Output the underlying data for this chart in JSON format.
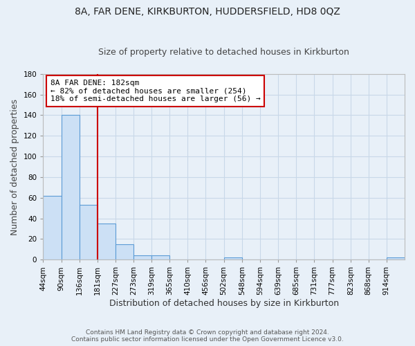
{
  "title1": "8A, FAR DENE, KIRKBURTON, HUDDERSFIELD, HD8 0QZ",
  "title2": "Size of property relative to detached houses in Kirkburton",
  "xlabel": "Distribution of detached houses by size in Kirkburton",
  "ylabel": "Number of detached properties",
  "footnote1": "Contains HM Land Registry data © Crown copyright and database right 2024.",
  "footnote2": "Contains public sector information licensed under the Open Government Licence v3.0.",
  "bin_edges": [
    44,
    90,
    136,
    181,
    227,
    273,
    319,
    365,
    410,
    456,
    502,
    548,
    594,
    639,
    685,
    731,
    777,
    823,
    868,
    914,
    960
  ],
  "bar_heights": [
    62,
    140,
    53,
    35,
    15,
    4,
    4,
    0,
    0,
    0,
    2,
    0,
    0,
    0,
    0,
    0,
    0,
    0,
    0,
    2
  ],
  "bar_color": "#cce0f5",
  "bar_edge_color": "#5b9bd5",
  "grid_color": "#c8d8e8",
  "background_color": "#e8f0f8",
  "vline_x": 182,
  "vline_color": "#cc0000",
  "annotation_line1": "8A FAR DENE: 182sqm",
  "annotation_line2": "← 82% of detached houses are smaller (254)",
  "annotation_line3": "18% of semi-detached houses are larger (56) →",
  "annotation_box_color": "#ffffff",
  "annotation_box_edge_color": "#cc0000",
  "ylim": [
    0,
    180
  ],
  "yticks": [
    0,
    20,
    40,
    60,
    80,
    100,
    120,
    140,
    160,
    180
  ],
  "title1_fontsize": 10,
  "title2_fontsize": 9,
  "ylabel_fontsize": 9,
  "xlabel_fontsize": 9,
  "tick_fontsize": 7.5,
  "footnote_fontsize": 6.5
}
